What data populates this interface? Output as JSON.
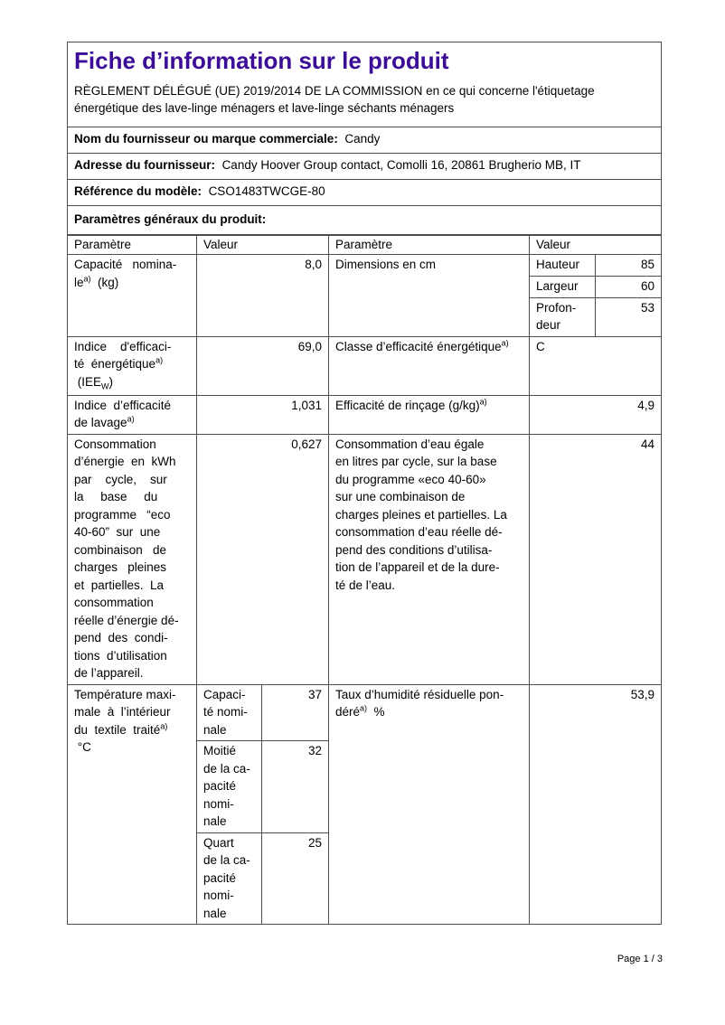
{
  "doc": {
    "title": "Fiche d’information sur le produit",
    "regulation": "RÈGLEMENT DÉLÉGUÉ (UE) 2019/2014 DE LA COMMISSION en ce qui concerne l'étiquetage énergétique des lave-linge ménagers et lave-linge séchants ménagers",
    "supplier_row": {
      "label": "Nom du fournisseur ou marque commerciale:",
      "value": "Candy"
    },
    "address_row": {
      "label": "Adresse du fournisseur:",
      "value": "Candy Hoover Group contact, Comolli 16, 20861 Brugherio MB, IT"
    },
    "model_row": {
      "label": "Référence du modèle:",
      "value": "CSO1483TWCGE-80"
    },
    "section_heading": "Paramètres généraux du produit:",
    "footer": "Page 1 / 3"
  },
  "table": {
    "col_headers": [
      "Paramètre",
      "Valeur",
      "Paramètre",
      "Valeur"
    ],
    "nominal_capacity": {
      "label": "Capacité   nomina-\nle^{a)}  (kg)",
      "value": "8,0"
    },
    "dimensions": {
      "label": "Dimensions en cm",
      "rows": [
        {
          "label": "Hauteur",
          "value": "85"
        },
        {
          "label": "Largeur",
          "value": "60"
        },
        {
          "label": "Profon-\ndeur",
          "value": "53"
        }
      ]
    },
    "energy_efficiency_index": {
      "label": "Indice    d'efficaci-\nté  énergétique^{a)}\n (IEE_{W})",
      "value": "69,0"
    },
    "energy_class": {
      "label": "Classe d’efficacité énergétique^{a)}",
      "value": "C"
    },
    "washing_efficiency_index": {
      "label": "Indice  d’efficacité\nde lavage^{a)}",
      "value": "1,031"
    },
    "rinsing_effectiveness": {
      "label": "Efficacité de rinçage (g/kg)^{a)}",
      "value": "4,9"
    },
    "energy_consumption": {
      "label": "Consommation\nd’énergie  en  kWh\npar    cycle,    sur\nla     base     du\nprogramme   “eco\n40-60”  sur  une\ncombinaison   de\ncharges   pleines\net  partielles.  La\nconsommation\nréelle d’énergie dé-\npend  des  condi-\ntions  d’utilisation\nde l’appareil.",
      "value": "0,627"
    },
    "water_consumption": {
      "label": "Consommation d’eau égale\nen litres par cycle, sur la base\ndu programme «eco 40-60»\nsur une combinaison de\ncharges pleines et partielles. La\nconsommation d’eau réelle dé-\npend des conditions d’utilisa-\ntion de l’appareil et de la dure-\nté de l’eau.",
      "value": "44"
    },
    "max_temperature": {
      "label": "Température maxi-\nmale  à  l’intérieur\ndu  textile  traité^{a)}\n °C",
      "rows": [
        {
          "label": "Capaci-\nté nomi-\nnale",
          "value": "37"
        },
        {
          "label": "Moitié\nde la ca-\npacité\nnomi-\nnale",
          "value": "32"
        },
        {
          "label": "Quart\nde la ca-\npacité\nnomi-\nnale",
          "value": "25"
        }
      ]
    },
    "residual_humidity": {
      "label": "Taux d’humidité résiduelle pon-\ndéré^{a)}  %",
      "value": "53,9"
    }
  },
  "colors": {
    "title": "#3c0d96",
    "border": "#4d4d4d"
  }
}
